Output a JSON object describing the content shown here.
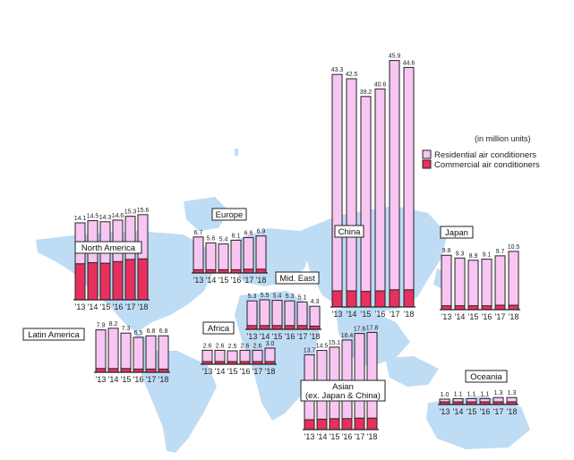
{
  "legend": {
    "unit_note": "(in million units)",
    "residential": "Residential air conditioners",
    "commercial": "Commercial air conditioners"
  },
  "colors": {
    "residential": "#f8c6f2",
    "commercial": "#e8305e",
    "outline": "#222222",
    "map": "#bfdcf5"
  },
  "chart_data": [
    {
      "type": "bar",
      "stacked": true,
      "region": "North America",
      "categories": [
        "'13",
        "'14",
        "'15",
        "'16",
        "'17",
        "'18"
      ],
      "totals": [
        14.1,
        14.5,
        14.3,
        14.6,
        15.3,
        15.6
      ],
      "total_labels": [
        "14.1",
        "14.5",
        "14.3",
        "14.6",
        "15.3",
        "15.6"
      ],
      "series": [
        {
          "name": "Commercial air conditioners",
          "values": [
            6.6,
            6.8,
            6.7,
            7.0,
            7.4,
            7.5
          ]
        },
        {
          "name": "Residential air conditioners",
          "values": [
            7.5,
            7.7,
            7.6,
            7.6,
            7.9,
            8.1
          ]
        }
      ]
    },
    {
      "type": "bar",
      "stacked": true,
      "region": "Europe",
      "categories": [
        "'13",
        "'14",
        "'15",
        "'16",
        "'17",
        "'18"
      ],
      "totals": [
        6.7,
        5.6,
        5.4,
        6.1,
        6.6,
        6.9
      ],
      "total_labels": [
        "6.7",
        "5.6",
        "5.4",
        "6.1",
        "6.6",
        "6.9"
      ],
      "series": [
        {
          "name": "Commercial air conditioners",
          "values": [
            0.6,
            0.6,
            0.6,
            0.6,
            0.7,
            0.7
          ]
        },
        {
          "name": "Residential air conditioners",
          "values": [
            6.1,
            5.0,
            4.8,
            5.5,
            5.9,
            6.2
          ]
        }
      ]
    },
    {
      "type": "bar",
      "stacked": true,
      "region": "Mid. East",
      "categories": [
        "'13",
        "'14",
        "'15",
        "'16",
        "'17",
        "'18"
      ],
      "totals": [
        5.3,
        5.5,
        5.4,
        5.3,
        5.1,
        4.3
      ],
      "total_labels": [
        "5.3",
        "5.5",
        "5.4",
        "5.3",
        "5.1",
        "4.3"
      ],
      "series": [
        {
          "name": "Commercial air conditioners",
          "values": [
            0.7,
            0.7,
            0.7,
            0.7,
            0.7,
            0.6
          ]
        },
        {
          "name": "Residential air conditioners",
          "values": [
            4.6,
            4.8,
            4.7,
            4.6,
            4.4,
            3.7
          ]
        }
      ]
    },
    {
      "type": "bar",
      "stacked": true,
      "region": "Latin America",
      "categories": [
        "'13",
        "'14",
        "'15",
        "'16",
        "'17",
        "'18"
      ],
      "totals": [
        7.9,
        8.2,
        7.3,
        6.5,
        6.8,
        6.8
      ],
      "total_labels": [
        "7.9",
        "8.2",
        "7.3",
        "6.5",
        "6.8",
        "6.8"
      ],
      "series": [
        {
          "name": "Commercial air conditioners",
          "values": [
            0.7,
            0.7,
            0.7,
            0.6,
            0.6,
            0.6
          ]
        },
        {
          "name": "Residential air conditioners",
          "values": [
            7.2,
            7.5,
            6.6,
            5.9,
            6.2,
            6.2
          ]
        }
      ]
    },
    {
      "type": "bar",
      "stacked": true,
      "region": "Africa",
      "categories": [
        "'13",
        "'14",
        "'15",
        "'16",
        "'17",
        "'18"
      ],
      "totals": [
        2.6,
        2.6,
        2.5,
        2.6,
        2.6,
        3.0
      ],
      "total_labels": [
        "2.6",
        "2.6",
        "2.5",
        "2.6",
        "2.6",
        "3.0"
      ],
      "series": [
        {
          "name": "Commercial air conditioners",
          "values": [
            0.2,
            0.2,
            0.2,
            0.2,
            0.2,
            0.2
          ]
        },
        {
          "name": "Residential air conditioners",
          "values": [
            2.4,
            2.4,
            2.3,
            2.4,
            2.4,
            2.8
          ]
        }
      ]
    },
    {
      "type": "bar",
      "stacked": true,
      "region": "China",
      "categories": [
        "'13",
        "'14",
        "'15",
        "'16",
        "'17",
        "'18"
      ],
      "totals": [
        43.3,
        42.5,
        39.2,
        40.6,
        45.9,
        44.6
      ],
      "total_labels": [
        "43.3",
        "42.5",
        "39.2",
        "40.6",
        "45.9",
        "44.6"
      ],
      "series": [
        {
          "name": "Commercial air conditioners",
          "values": [
            3.0,
            3.0,
            2.9,
            3.0,
            3.2,
            3.2
          ]
        },
        {
          "name": "Residential air conditioners",
          "values": [
            40.3,
            39.5,
            36.3,
            37.6,
            42.7,
            41.4
          ]
        }
      ]
    },
    {
      "type": "bar",
      "stacked": true,
      "region": "Asian\n(ex. Japan & China)",
      "categories": [
        "'13",
        "'14",
        "'15",
        "'16",
        "'17",
        "'18"
      ],
      "totals": [
        13.7,
        14.5,
        15.1,
        16.4,
        17.6,
        17.8
      ],
      "total_labels": [
        "13.7",
        "14.5",
        "15.1",
        "16.4",
        "17.6",
        "17.8"
      ],
      "series": [
        {
          "name": "Commercial air conditioners",
          "values": [
            1.8,
            1.9,
            2.0,
            2.0,
            2.1,
            2.1
          ]
        },
        {
          "name": "Residential air conditioners",
          "values": [
            11.9,
            12.6,
            13.1,
            14.4,
            15.5,
            15.7
          ]
        }
      ]
    },
    {
      "type": "bar",
      "stacked": true,
      "region": "Japan",
      "categories": [
        "'13",
        "'14",
        "'15",
        "'16",
        "'17",
        "'18"
      ],
      "totals": [
        9.8,
        9.3,
        8.9,
        9.1,
        9.7,
        10.5
      ],
      "total_labels": [
        "9.8",
        "9.3",
        "8.9",
        "9.1",
        "9.7",
        "10.5"
      ],
      "series": [
        {
          "name": "Commercial air conditioners",
          "values": [
            0.7,
            0.7,
            0.7,
            0.7,
            0.8,
            0.8
          ]
        },
        {
          "name": "Residential air conditioners",
          "values": [
            9.1,
            8.6,
            8.2,
            8.4,
            8.9,
            9.7
          ]
        }
      ]
    },
    {
      "type": "bar",
      "stacked": true,
      "region": "Oceania",
      "categories": [
        "'13",
        "'14",
        "'15",
        "'16",
        "'17",
        "'18"
      ],
      "totals": [
        1.0,
        1.1,
        1.1,
        1.1,
        1.3,
        1.3
      ],
      "total_labels": [
        "1.0",
        "1.1",
        "1.1",
        "1.1",
        "1.3",
        "1.3"
      ],
      "series": [
        {
          "name": "Commercial air conditioners",
          "values": [
            0.1,
            0.1,
            0.1,
            0.1,
            0.1,
            0.1
          ]
        },
        {
          "name": "Residential air conditioners",
          "values": [
            0.9,
            1.0,
            1.0,
            1.0,
            1.2,
            1.2
          ]
        }
      ]
    }
  ]
}
